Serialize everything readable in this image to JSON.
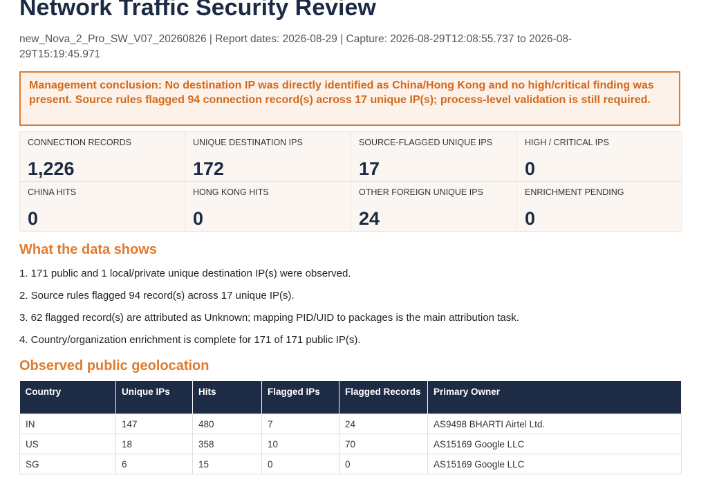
{
  "header": {
    "title": "Network Traffic Security Review",
    "subtitle": "new_Nova_2_Pro_SW_V07_20260826 | Report dates: 2026-08-29 | Capture: 2026-08-29T12:08:55.737 to 2026-08-29T15:19:45.971"
  },
  "conclusion": "Management conclusion: No destination IP was directly identified as China/Hong Kong and no high/critical finding was present. Source rules flagged 94 connection record(s) across 17 unique IP(s); process-level validation is still required.",
  "stats": [
    {
      "label": "CONNECTION RECORDS",
      "value": "1,226"
    },
    {
      "label": "UNIQUE DESTINATION IPS",
      "value": "172"
    },
    {
      "label": "SOURCE-FLAGGED UNIQUE IPS",
      "value": "17"
    },
    {
      "label": "HIGH / CRITICAL IPS",
      "value": "0"
    },
    {
      "label": "CHINA HITS",
      "value": "0"
    },
    {
      "label": "HONG KONG HITS",
      "value": "0"
    },
    {
      "label": "OTHER FOREIGN UNIQUE IPS",
      "value": "24"
    },
    {
      "label": "ENRICHMENT PENDING",
      "value": "0"
    }
  ],
  "findings": {
    "heading": "What the data shows",
    "items": [
      "1. 171 public and 1 local/private unique destination IP(s) were observed.",
      "2. Source rules flagged 94 record(s) across 17 unique IP(s).",
      "3. 62 flagged record(s) are attributed as Unknown; mapping PID/UID to packages is the main attribution task.",
      "4. Country/organization enrichment is complete for 171 of 171 public IP(s)."
    ]
  },
  "geolocation": {
    "heading": "Observed public geolocation",
    "columns": [
      "Country",
      "Unique IPs",
      "Hits",
      "Flagged IPs",
      "Flagged Records",
      "Primary Owner"
    ],
    "rows": [
      [
        "IN",
        "147",
        "480",
        "7",
        "24",
        "AS9498 BHARTI Airtel Ltd."
      ],
      [
        "US",
        "18",
        "358",
        "10",
        "70",
        "AS15169 Google LLC"
      ],
      [
        "SG",
        "6",
        "15",
        "0",
        "0",
        "AS15169 Google LLC"
      ]
    ]
  }
}
